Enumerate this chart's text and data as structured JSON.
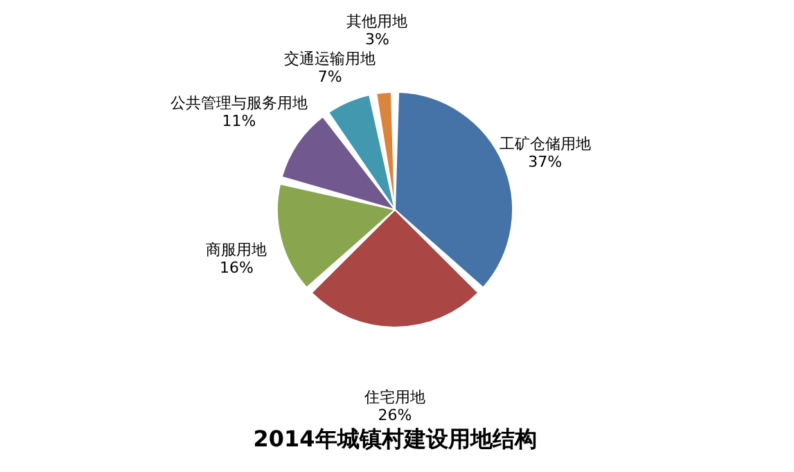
{
  "chart_data": {
    "type": "pie",
    "title": "2014年城镇村建设用地结构",
    "categories": [
      "工矿仓储用地",
      "住宅用地",
      "商服用地",
      "公共管理与服务用地",
      "交通运输用地",
      "其他用地"
    ],
    "values": [
      37,
      26,
      16,
      11,
      7,
      3
    ],
    "colors": [
      "#4572a7",
      "#aa4643",
      "#89a54e",
      "#71588f",
      "#4198af",
      "#db843d"
    ],
    "value_labels": [
      "37%",
      "26%",
      "16%",
      "11%",
      "7%",
      "3%"
    ],
    "legend": false
  }
}
